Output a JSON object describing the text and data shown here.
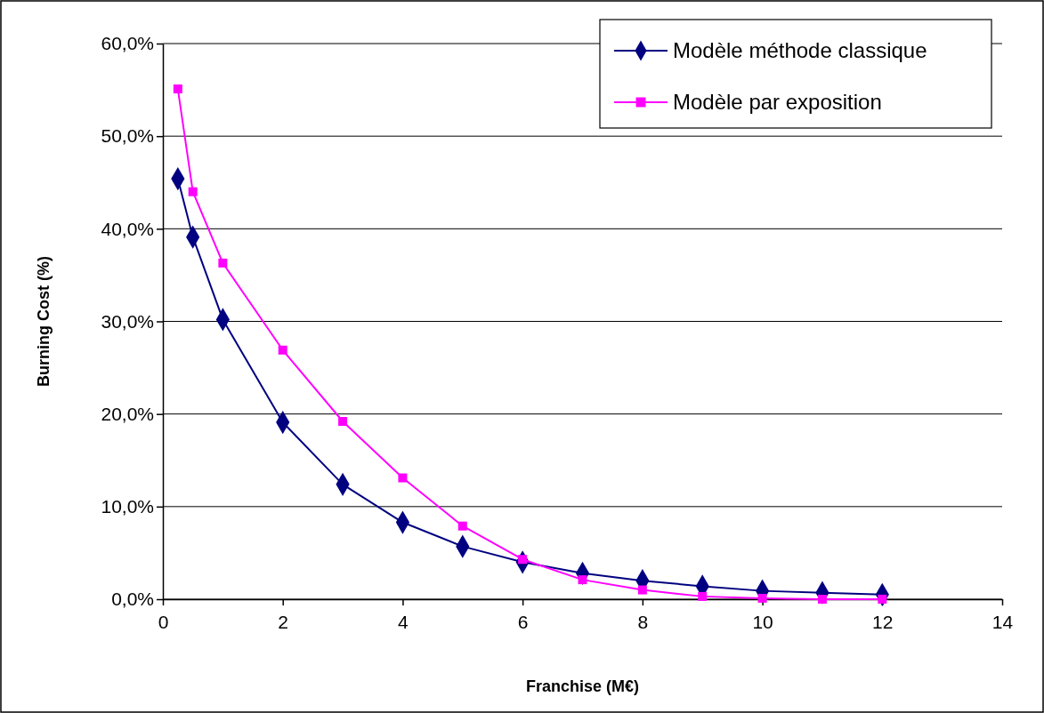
{
  "chart_data": {
    "type": "line",
    "xlabel": "Franchise (M€)",
    "ylabel": "Burning Cost (%)",
    "xlim": [
      0,
      14
    ],
    "xticks": [
      0,
      2,
      4,
      6,
      8,
      10,
      12,
      14
    ],
    "ylim": [
      0,
      60
    ],
    "yticks": [
      {
        "value": 0,
        "label": "0,0%"
      },
      {
        "value": 10,
        "label": "10,0%"
      },
      {
        "value": 20,
        "label": "20,0%"
      },
      {
        "value": 30,
        "label": "30,0%"
      },
      {
        "value": 40,
        "label": "40,0%"
      },
      {
        "value": 50,
        "label": "50,0%"
      },
      {
        "value": 60,
        "label": "60,0%"
      }
    ],
    "grid": "y",
    "legend": "top right",
    "x": [
      0.25,
      0.5,
      1,
      2,
      3,
      4,
      5,
      6,
      7,
      8,
      9,
      10,
      11,
      12
    ],
    "series": [
      {
        "name": "Modèle méthode classique",
        "color": "#000080",
        "marker": "diamond",
        "values": [
          45.4,
          39.1,
          30.2,
          19.1,
          12.4,
          8.3,
          5.7,
          4.0,
          2.8,
          2.0,
          1.4,
          0.9,
          0.7,
          0.5
        ]
      },
      {
        "name": "Modèle par exposition",
        "color": "#ff00ff",
        "marker": "square",
        "values": [
          55.1,
          44.0,
          36.3,
          26.9,
          19.2,
          13.1,
          7.9,
          4.3,
          2.1,
          1.0,
          0.3,
          0.1,
          0,
          0
        ]
      }
    ]
  }
}
